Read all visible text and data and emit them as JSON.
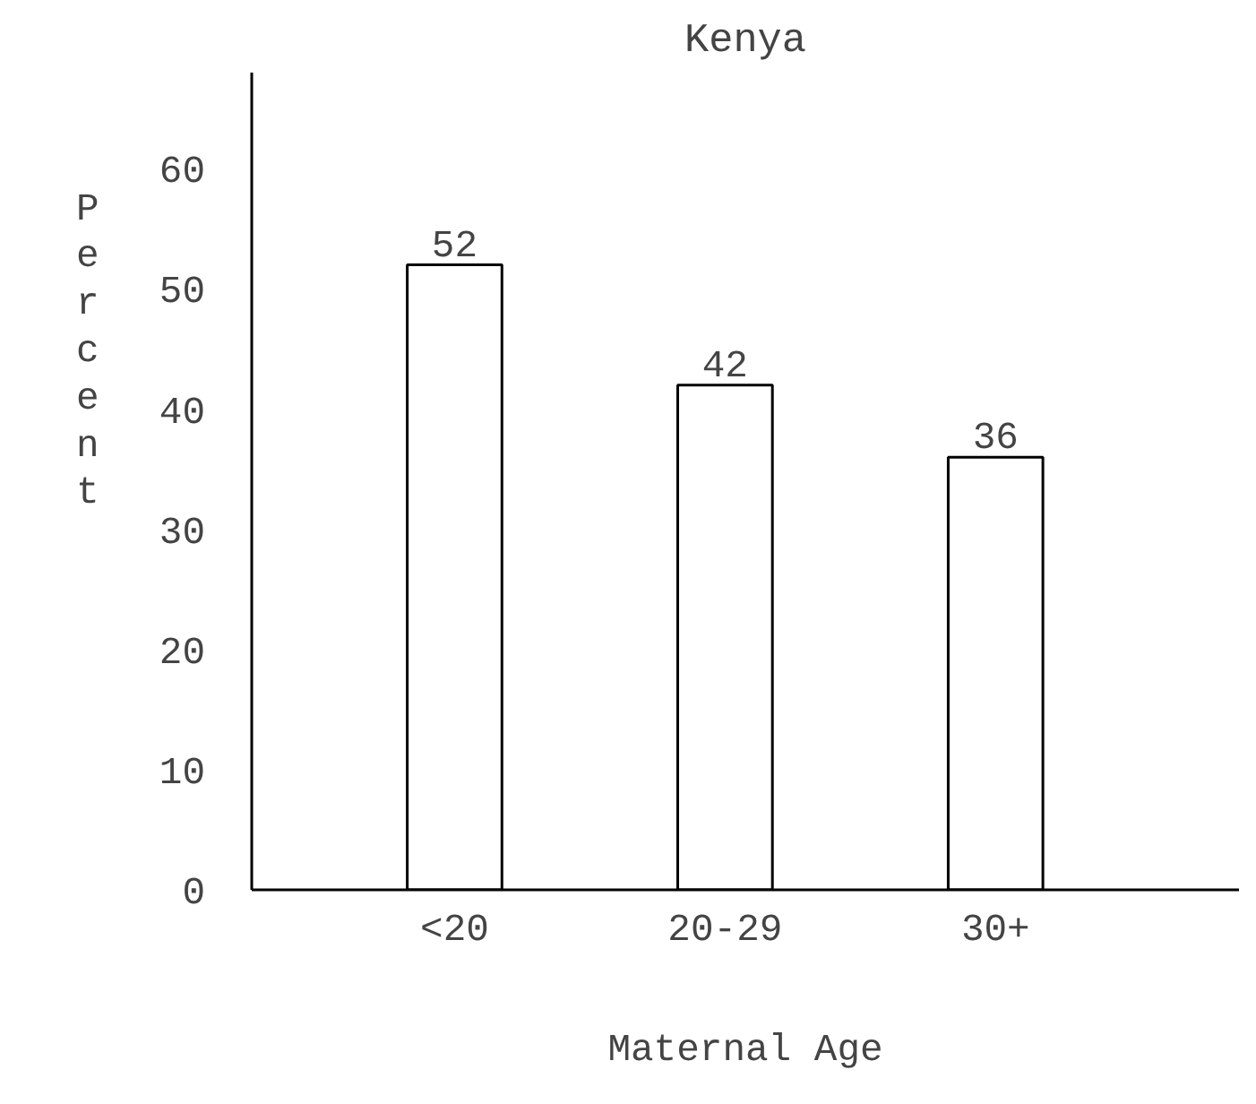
{
  "chart_data": {
    "type": "bar",
    "title": "Kenya",
    "xlabel": "Maternal Age",
    "ylabel": "Percent",
    "categories": [
      "<20",
      "20-29",
      "30+"
    ],
    "values": [
      52,
      42,
      36
    ],
    "color": "#ffffff",
    "ylim": [
      0,
      68
    ],
    "yticks": [
      0,
      10,
      20,
      30,
      40,
      50,
      60
    ],
    "data_labels": true,
    "grid": false
  }
}
